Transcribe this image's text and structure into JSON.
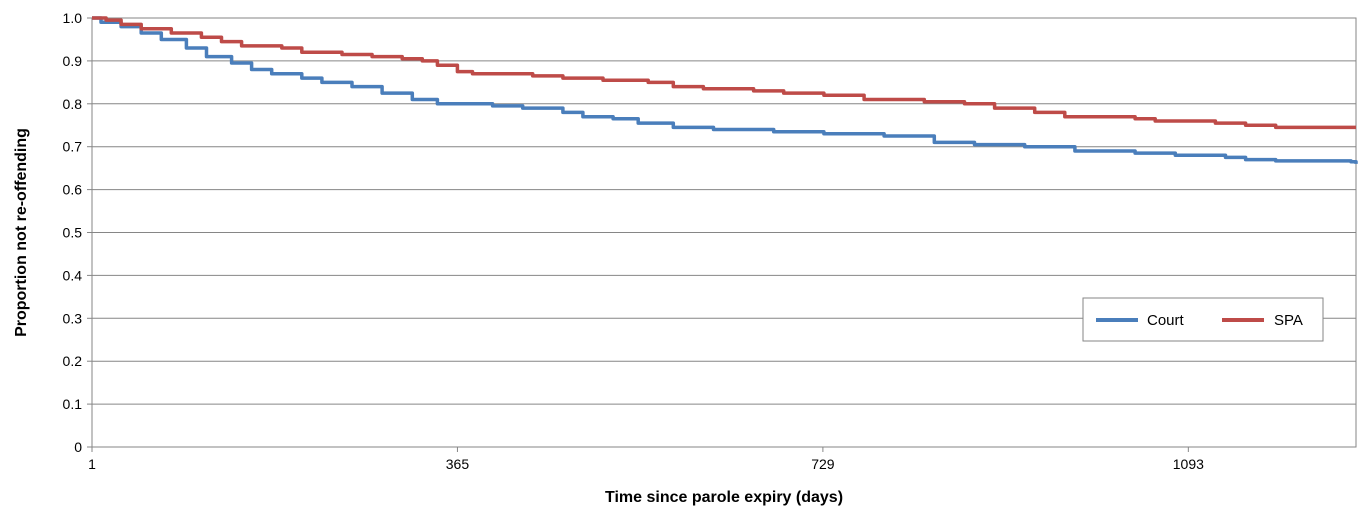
{
  "chart_data": {
    "type": "line",
    "title": "",
    "xlabel": "Time since parole expiry (days)",
    "ylabel": "Proportion not re-offending",
    "xlim": [
      1,
      1260
    ],
    "ylim": [
      0,
      1.0
    ],
    "x_ticks": [
      1,
      365,
      729,
      1093
    ],
    "x_tick_labels": [
      "1",
      "365",
      "729",
      "1093"
    ],
    "y_ticks": [
      0,
      0.1,
      0.2,
      0.3,
      0.4,
      0.5,
      0.6,
      0.7,
      0.8,
      0.9,
      1.0
    ],
    "y_tick_labels": [
      "0",
      "0.1",
      "0.2",
      "0.3",
      "0.4",
      "0.5",
      "0.6",
      "0.7",
      "0.8",
      "0.9",
      "1.0"
    ],
    "grid": "horizontal",
    "legend_position": "right",
    "series": [
      {
        "name": "Court",
        "color": "#4a7ebb",
        "points": [
          [
            1,
            1.0
          ],
          [
            10,
            0.99
          ],
          [
            30,
            0.98
          ],
          [
            50,
            0.965
          ],
          [
            70,
            0.95
          ],
          [
            95,
            0.93
          ],
          [
            115,
            0.91
          ],
          [
            140,
            0.895
          ],
          [
            160,
            0.88
          ],
          [
            180,
            0.87
          ],
          [
            210,
            0.86
          ],
          [
            230,
            0.85
          ],
          [
            260,
            0.84
          ],
          [
            290,
            0.825
          ],
          [
            320,
            0.81
          ],
          [
            345,
            0.8
          ],
          [
            400,
            0.795
          ],
          [
            430,
            0.79
          ],
          [
            470,
            0.78
          ],
          [
            490,
            0.77
          ],
          [
            520,
            0.765
          ],
          [
            545,
            0.755
          ],
          [
            580,
            0.745
          ],
          [
            620,
            0.74
          ],
          [
            680,
            0.735
          ],
          [
            730,
            0.73
          ],
          [
            790,
            0.725
          ],
          [
            840,
            0.71
          ],
          [
            880,
            0.705
          ],
          [
            930,
            0.7
          ],
          [
            980,
            0.69
          ],
          [
            1040,
            0.685
          ],
          [
            1080,
            0.68
          ],
          [
            1130,
            0.675
          ],
          [
            1150,
            0.67
          ],
          [
            1180,
            0.667
          ],
          [
            1255,
            0.665
          ],
          [
            1260,
            0.66
          ]
        ]
      },
      {
        "name": "SPA",
        "color": "#be4b48",
        "points": [
          [
            1,
            1.0
          ],
          [
            15,
            0.995
          ],
          [
            30,
            0.985
          ],
          [
            50,
            0.975
          ],
          [
            80,
            0.965
          ],
          [
            110,
            0.955
          ],
          [
            130,
            0.945
          ],
          [
            150,
            0.935
          ],
          [
            190,
            0.93
          ],
          [
            210,
            0.92
          ],
          [
            250,
            0.915
          ],
          [
            280,
            0.91
          ],
          [
            310,
            0.905
          ],
          [
            330,
            0.9
          ],
          [
            345,
            0.89
          ],
          [
            365,
            0.875
          ],
          [
            380,
            0.87
          ],
          [
            440,
            0.865
          ],
          [
            470,
            0.86
          ],
          [
            510,
            0.855
          ],
          [
            555,
            0.85
          ],
          [
            580,
            0.84
          ],
          [
            610,
            0.835
          ],
          [
            660,
            0.83
          ],
          [
            690,
            0.825
          ],
          [
            730,
            0.82
          ],
          [
            770,
            0.81
          ],
          [
            830,
            0.805
          ],
          [
            870,
            0.8
          ],
          [
            900,
            0.79
          ],
          [
            940,
            0.78
          ],
          [
            970,
            0.77
          ],
          [
            1040,
            0.765
          ],
          [
            1060,
            0.76
          ],
          [
            1120,
            0.755
          ],
          [
            1150,
            0.75
          ],
          [
            1180,
            0.745
          ],
          [
            1260,
            0.745
          ]
        ]
      }
    ]
  }
}
